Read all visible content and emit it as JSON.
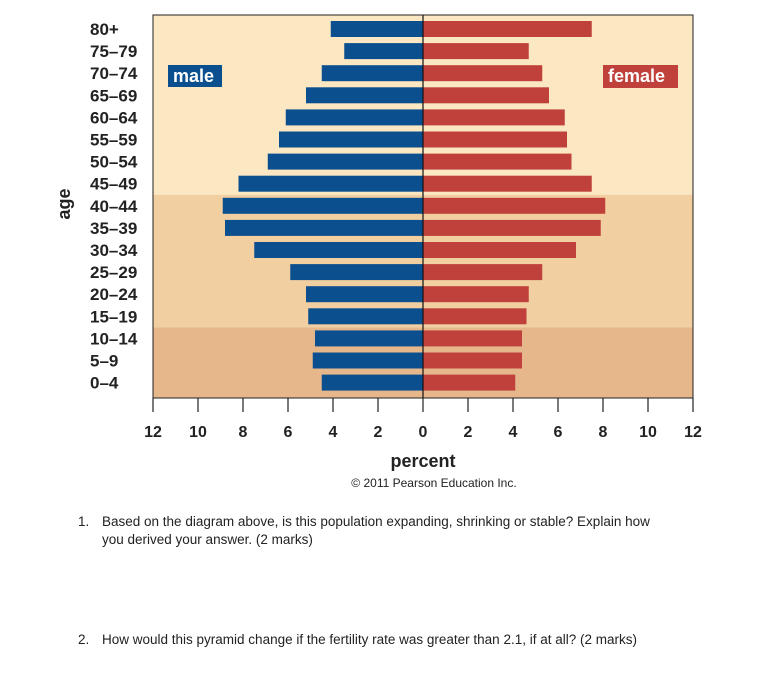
{
  "chart_data": {
    "type": "bar",
    "orientation": "horizontal-population-pyramid",
    "categories": [
      "80+",
      "75–79",
      "70–74",
      "65–69",
      "60–64",
      "55–59",
      "50–54",
      "45–49",
      "40–44",
      "35–39",
      "30–34",
      "25–29",
      "20–24",
      "15–19",
      "10–14",
      "5–9",
      "0–4"
    ],
    "series": [
      {
        "name": "male",
        "color": "#0c4f8f",
        "values": [
          4.1,
          3.5,
          4.5,
          5.2,
          6.1,
          6.4,
          6.9,
          8.2,
          8.9,
          8.8,
          7.5,
          5.9,
          5.2,
          5.1,
          4.8,
          4.9,
          4.5
        ]
      },
      {
        "name": "female",
        "color": "#c0413c",
        "values": [
          7.5,
          4.7,
          5.3,
          5.6,
          6.3,
          6.4,
          6.6,
          7.5,
          8.1,
          7.9,
          6.8,
          5.3,
          4.7,
          4.6,
          4.4,
          4.4,
          4.1
        ]
      }
    ],
    "xlabel": "percent",
    "ylabel": "age",
    "xlim": [
      -12,
      12
    ],
    "xticks": [
      "12",
      "10",
      "8",
      "6",
      "4",
      "2",
      "0",
      "2",
      "4",
      "6",
      "8",
      "10",
      "12"
    ],
    "legend": [
      "male",
      "female"
    ],
    "background_bands": [
      {
        "from": "80+",
        "to": "45–49",
        "color": "#fbe8c2"
      },
      {
        "from": "40–44",
        "to": "15–19",
        "color": "#f1cfa0"
      },
      {
        "from": "10–14",
        "to": "0–4",
        "color": "#e5b78b"
      }
    ]
  },
  "copyright": "© 2011 Pearson Education Inc.",
  "questions": [
    {
      "number": "1.",
      "text": "Based on the diagram above, is this population expanding, shrinking or stable? Explain how you derived your answer. (2 marks)"
    },
    {
      "number": "2.",
      "text": "How would this pyramid change if the fertility rate was greater than 2.1, if at all? (2 marks)"
    }
  ]
}
